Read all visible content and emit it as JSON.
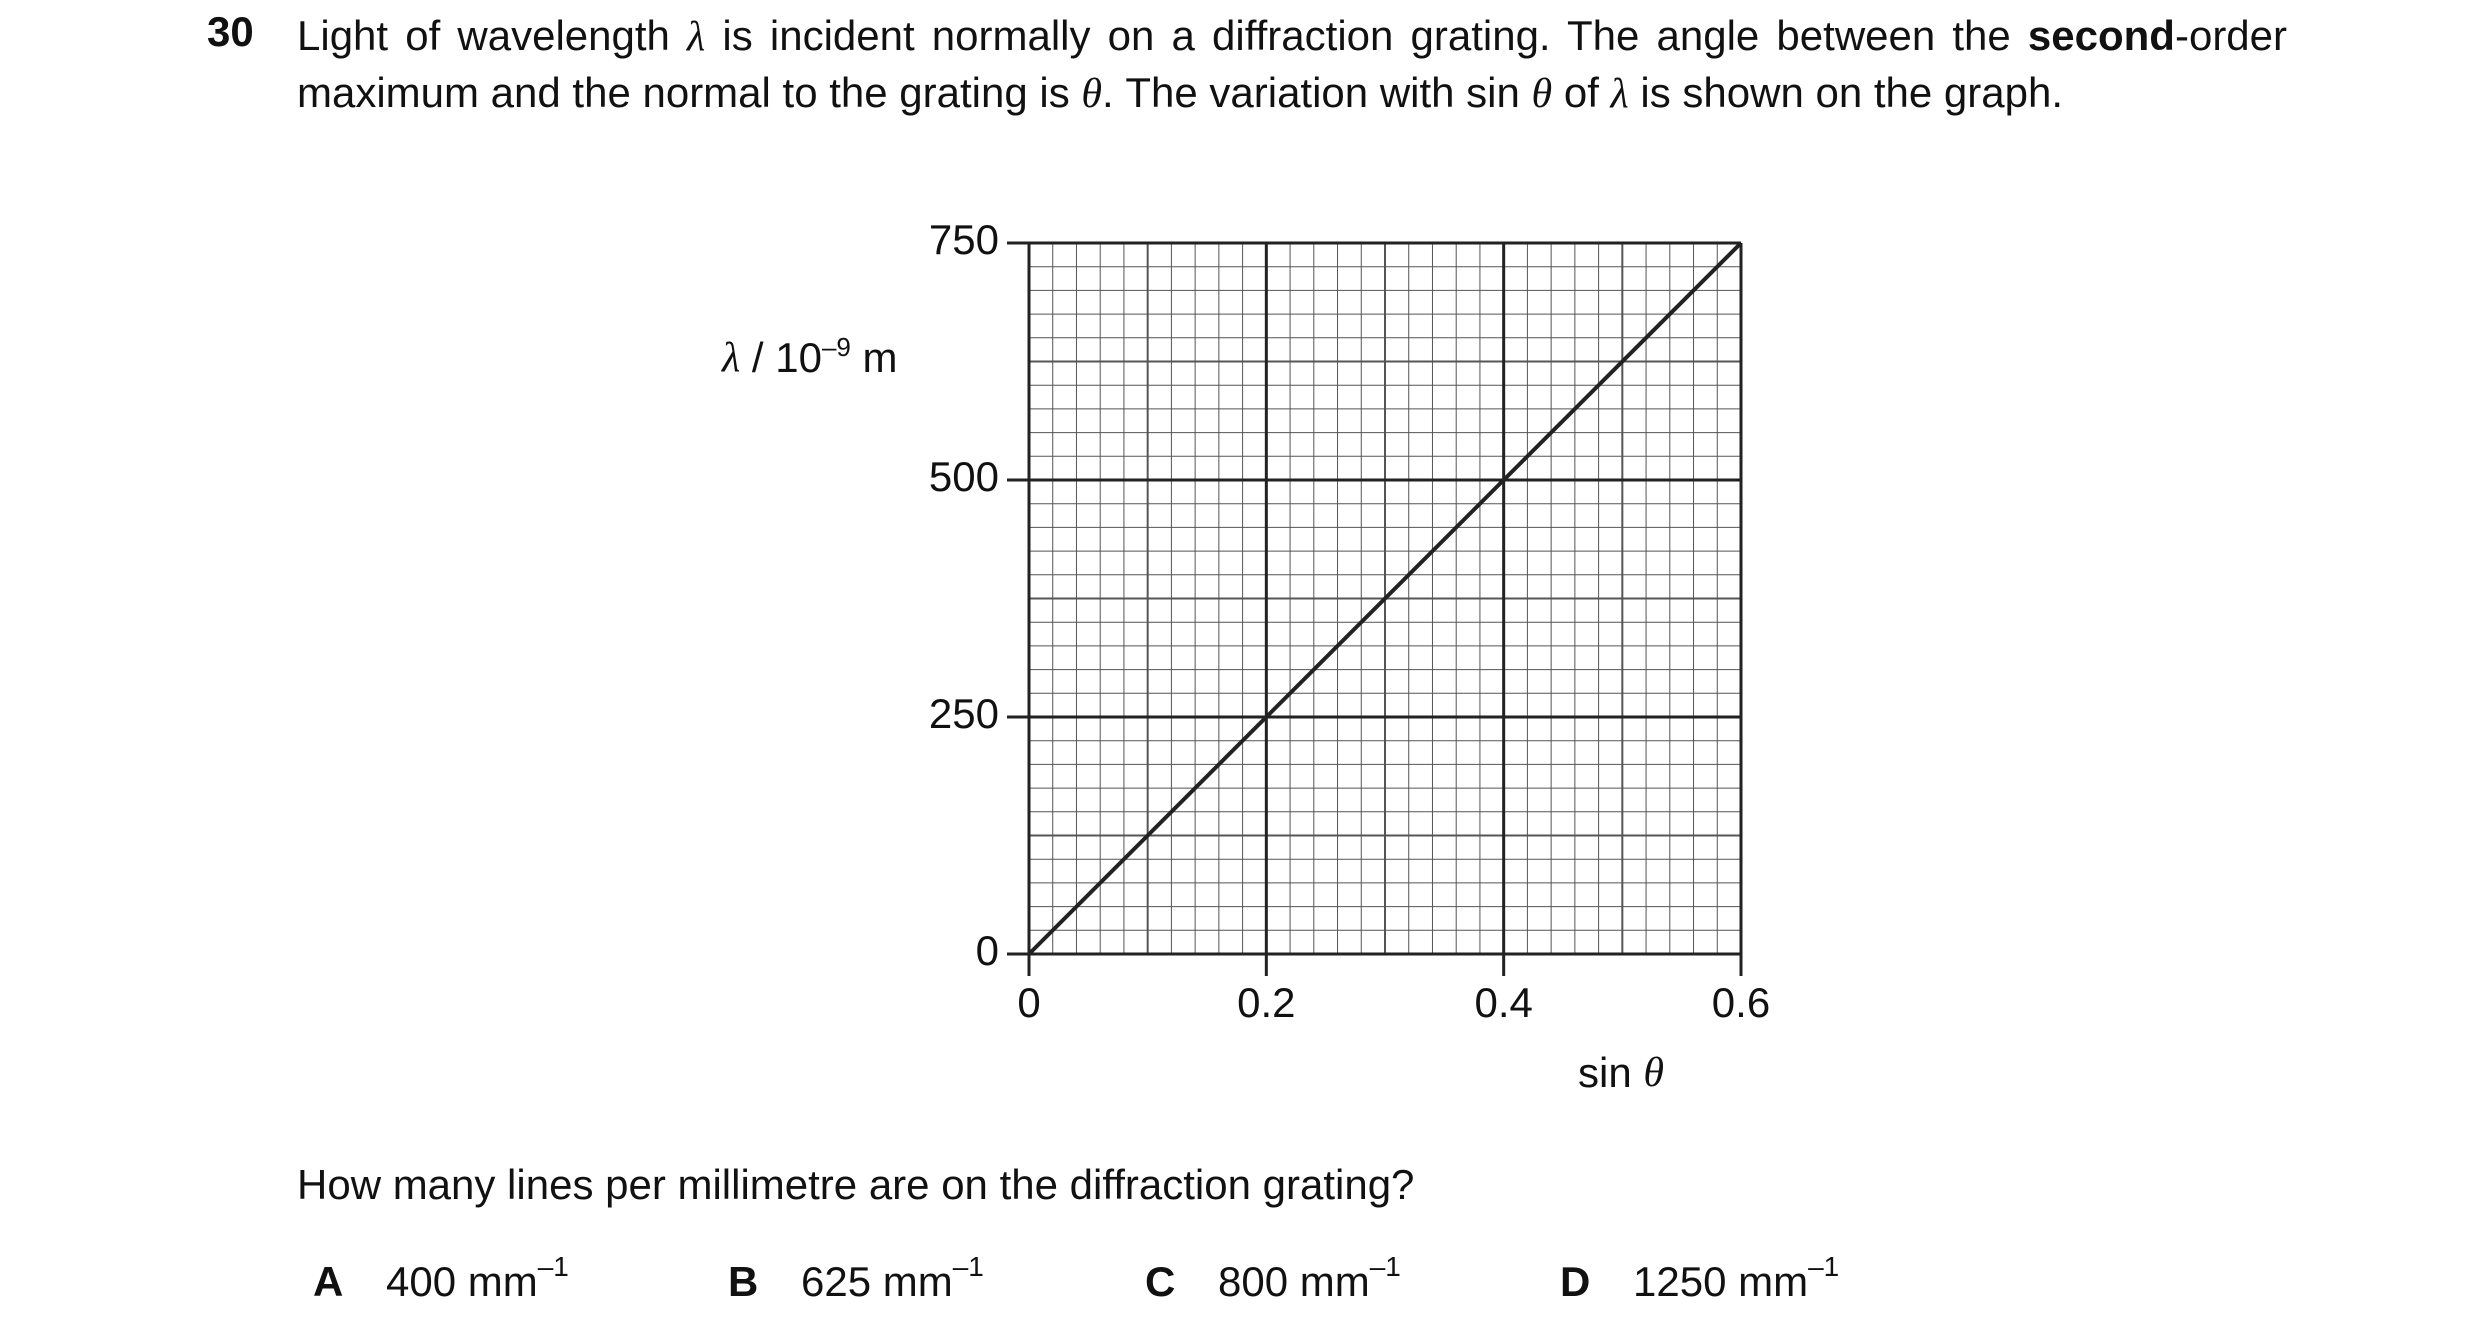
{
  "question": {
    "number": "30",
    "text_parts": [
      "Light of wavelength ",
      "λ",
      " is incident normally on a diffraction grating. The angle between the ",
      "second",
      "-order maximum and the normal to the grating is ",
      "θ",
      ". The variation with sin ",
      "θ",
      " of ",
      "λ",
      " is shown on the graph."
    ],
    "prompt": "How many lines per millimetre are on the diffraction grating?",
    "options": [
      {
        "letter": "A",
        "text": "400 mm",
        "superscript": "–1"
      },
      {
        "letter": "B",
        "text": "625 mm",
        "superscript": "–1"
      },
      {
        "letter": "C",
        "text": "800 mm",
        "superscript": "–1"
      },
      {
        "letter": "D",
        "text": "1250 mm",
        "superscript": "–1"
      }
    ]
  },
  "chart_data": {
    "type": "line",
    "y_label_parts": [
      "λ",
      " / 10",
      "–9",
      " m"
    ],
    "x_label_parts": [
      "sin ",
      "θ"
    ],
    "x": [
      0,
      0.6
    ],
    "values": [
      0,
      750
    ],
    "color": "#222222",
    "xlim": [
      0,
      0.6
    ],
    "xticks": [
      0,
      0.2,
      0.4,
      0.6
    ],
    "ylim": [
      0,
      750
    ],
    "yticks": [
      0,
      250,
      500,
      750
    ],
    "grid": true
  }
}
